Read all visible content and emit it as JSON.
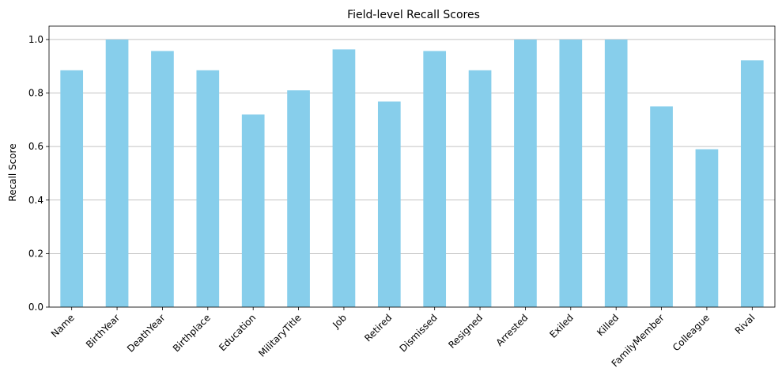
{
  "chart_data": {
    "type": "bar",
    "title": "Field-level Recall Scores",
    "xlabel": "",
    "ylabel": "Recall Score",
    "categories": [
      "Name",
      "BirthYear",
      "DeathYear",
      "Birthplace",
      "Education",
      "MilitaryTitle",
      "Job",
      "Retired",
      "Dismissed",
      "Resigned",
      "Arrested",
      "Exiled",
      "Killed",
      "FamilyMember",
      "Colleague",
      "Rival"
    ],
    "values": [
      0.885,
      1.0,
      0.957,
      0.885,
      0.72,
      0.81,
      0.963,
      0.768,
      0.957,
      0.885,
      1.0,
      1.0,
      1.0,
      0.75,
      0.59,
      0.922
    ],
    "ylim": [
      0,
      1.05
    ],
    "yticks": [
      0.0,
      0.2,
      0.4,
      0.6,
      0.8,
      1.0
    ],
    "ytick_labels": [
      "0.0",
      "0.2",
      "0.4",
      "0.6",
      "0.8",
      "1.0"
    ],
    "grid": "y-axis",
    "bar_color": "#87ceeb",
    "grid_color": "#b0b0b0",
    "axis_color": "#000000"
  }
}
